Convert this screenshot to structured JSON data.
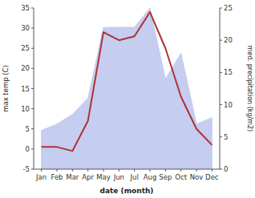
{
  "chart_data": {
    "type": "line",
    "xlabel": "date (month)",
    "ylabel": "max temp (C)",
    "y2label": "med. precipitation (kg/m2)",
    "categories": [
      "Jan",
      "Feb",
      "Mar",
      "Apr",
      "May",
      "Jun",
      "Jul",
      "Aug",
      "Sep",
      "Oct",
      "Nov",
      "Dec"
    ],
    "series": [
      {
        "type": "line",
        "color": "#b03030",
        "values": [
          0.5,
          0.5,
          -0.5,
          7.0,
          29.0,
          27.0,
          28.0,
          34.0,
          25.0,
          13.0,
          5.0,
          1.0
        ]
      },
      {
        "type": "area",
        "axis": "y2",
        "color": "#c5cdf0",
        "values": [
          6.0,
          7.0,
          8.5,
          11.0,
          22.0,
          22.0,
          22.0,
          25.0,
          14.0,
          18.0,
          7.0,
          8.0
        ]
      }
    ],
    "ylim": [
      -5,
      35
    ],
    "yticks": [
      -5,
      0,
      5,
      10,
      15,
      20,
      25,
      30,
      35
    ],
    "y2lim": [
      0,
      25
    ],
    "y2ticks": [
      0,
      5,
      10,
      15,
      20,
      25
    ],
    "grid": false
  }
}
